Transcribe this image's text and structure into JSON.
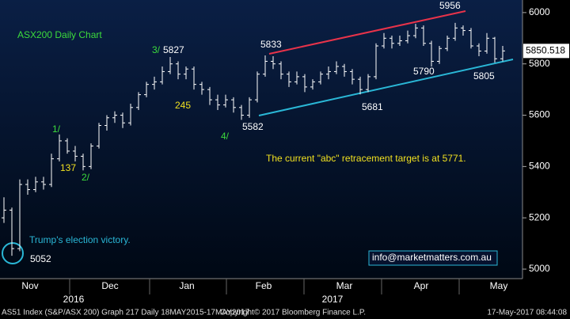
{
  "chart_data": {
    "type": "ohlc",
    "ohlc": [
      [
        5200,
        5280,
        5180,
        5230
      ],
      [
        5230,
        5240,
        5052,
        5080
      ],
      [
        5080,
        5350,
        5070,
        5330
      ],
      [
        5330,
        5350,
        5290,
        5310
      ],
      [
        5310,
        5360,
        5300,
        5340
      ],
      [
        5340,
        5360,
        5310,
        5330
      ],
      [
        5330,
        5450,
        5320,
        5430
      ],
      [
        5430,
        5525,
        5420,
        5500
      ],
      [
        5500,
        5510,
        5450,
        5460
      ],
      [
        5460,
        5480,
        5420,
        5440
      ],
      [
        5440,
        5450,
        5385,
        5400
      ],
      [
        5400,
        5490,
        5390,
        5480
      ],
      [
        5480,
        5570,
        5470,
        5560
      ],
      [
        5560,
        5600,
        5540,
        5590
      ],
      [
        5590,
        5615,
        5570,
        5600
      ],
      [
        5600,
        5610,
        5550,
        5570
      ],
      [
        5570,
        5645,
        5560,
        5630
      ],
      [
        5630,
        5690,
        5620,
        5680
      ],
      [
        5680,
        5730,
        5670,
        5720
      ],
      [
        5720,
        5750,
        5700,
        5730
      ],
      [
        5730,
        5790,
        5720,
        5770
      ],
      [
        5770,
        5827,
        5760,
        5800
      ],
      [
        5800,
        5810,
        5740,
        5760
      ],
      [
        5760,
        5790,
        5740,
        5780
      ],
      [
        5780,
        5790,
        5700,
        5720
      ],
      [
        5720,
        5730,
        5680,
        5700
      ],
      [
        5700,
        5710,
        5640,
        5660
      ],
      [
        5660,
        5680,
        5620,
        5640
      ],
      [
        5640,
        5680,
        5630,
        5660
      ],
      [
        5660,
        5670,
        5610,
        5630
      ],
      [
        5630,
        5640,
        5582,
        5600
      ],
      [
        5600,
        5670,
        5590,
        5660
      ],
      [
        5660,
        5770,
        5650,
        5760
      ],
      [
        5760,
        5833,
        5750,
        5810
      ],
      [
        5810,
        5830,
        5780,
        5800
      ],
      [
        5800,
        5810,
        5740,
        5760
      ],
      [
        5760,
        5770,
        5710,
        5730
      ],
      [
        5730,
        5770,
        5720,
        5750
      ],
      [
        5750,
        5760,
        5690,
        5710
      ],
      [
        5710,
        5740,
        5700,
        5730
      ],
      [
        5730,
        5770,
        5720,
        5760
      ],
      [
        5760,
        5790,
        5740,
        5770
      ],
      [
        5770,
        5810,
        5760,
        5790
      ],
      [
        5790,
        5800,
        5750,
        5770
      ],
      [
        5770,
        5780,
        5720,
        5740
      ],
      [
        5740,
        5750,
        5681,
        5700
      ],
      [
        5700,
        5760,
        5690,
        5750
      ],
      [
        5750,
        5880,
        5740,
        5870
      ],
      [
        5870,
        5920,
        5860,
        5900
      ],
      [
        5900,
        5910,
        5860,
        5880
      ],
      [
        5880,
        5910,
        5870,
        5890
      ],
      [
        5890,
        5930,
        5880,
        5910
      ],
      [
        5910,
        5956,
        5900,
        5940
      ],
      [
        5940,
        5950,
        5870,
        5880
      ],
      [
        5880,
        5890,
        5790,
        5810
      ],
      [
        5810,
        5870,
        5800,
        5860
      ],
      [
        5860,
        5910,
        5850,
        5900
      ],
      [
        5900,
        5960,
        5890,
        5940
      ],
      [
        5940,
        5950,
        5910,
        5930
      ],
      [
        5930,
        5940,
        5860,
        5870
      ],
      [
        5870,
        5880,
        5830,
        5850
      ],
      [
        5850,
        5920,
        5840,
        5900
      ],
      [
        5900,
        5905,
        5805,
        5820
      ],
      [
        5820,
        5870,
        5810,
        5850.518
      ]
    ],
    "last_label": "5850.518",
    "ylim": [
      4963,
      6049
    ],
    "yticks": [
      5000,
      5200,
      5400,
      5600,
      5800,
      6000
    ],
    "x_months": [
      "Nov",
      "Dec",
      "Jan",
      "Feb",
      "Mar",
      "Apr",
      "May"
    ],
    "x_years": [
      "2016",
      "2017"
    ],
    "annotations": [
      "ASX200 Daily Chart",
      "5956",
      "5833",
      "3/",
      "5827",
      "245",
      "4/",
      "5582",
      "5681",
      "5790",
      "5805",
      "1/",
      "137",
      "2/",
      "The current \"abc\" retracement target is at 5771.",
      "Trump's election victory.",
      "5052",
      "info@marketmatters.com.au"
    ],
    "footer": [
      "AS51 Index (S&P/ASX 200) Graph 217  Daily 18MAY2015-17MAY2017",
      "Copyright© 2017 Bloomberg Finance L.P.",
      "17-May-2017 08:44:08"
    ]
  }
}
